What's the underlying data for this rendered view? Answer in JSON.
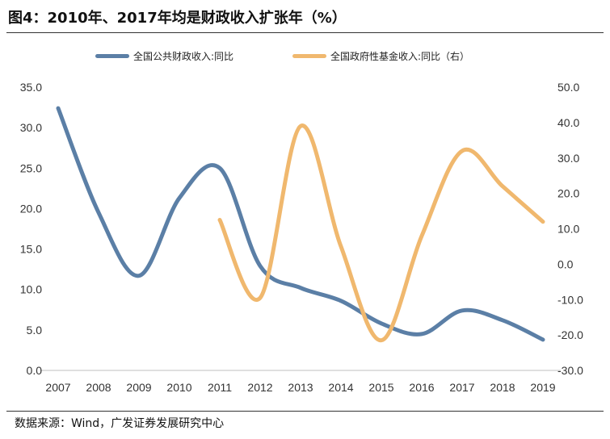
{
  "header": {
    "title": "图4：2010年、2017年均是财政收入扩张年（%）"
  },
  "footer": {
    "source": "数据来源：Wind，广发证券发展研究中心"
  },
  "colors": {
    "series1": "#5b7fa6",
    "series2": "#f0b86e",
    "axis": "#bfbfbf",
    "tick_text": "#333333"
  },
  "chart_data": {
    "type": "line",
    "title": "2010年、2017年均是财政收入扩张年（%）",
    "x": [
      "2007",
      "2008",
      "2009",
      "2010",
      "2011",
      "2012",
      "2013",
      "2014",
      "2015",
      "2016",
      "2017",
      "2018",
      "2019"
    ],
    "y_left": {
      "min": 0,
      "max": 35,
      "ticks": [
        "0.0",
        "5.0",
        "10.0",
        "15.0",
        "20.0",
        "25.0",
        "30.0",
        "35.0"
      ]
    },
    "y_right": {
      "min": -30,
      "max": 50,
      "ticks": [
        "-30.0",
        "-20.0",
        "-10.0",
        "0.0",
        "10.0",
        "20.0",
        "30.0",
        "40.0",
        "50.0"
      ]
    },
    "legend_position": "top",
    "series": [
      {
        "name": "全国公共财政收入:同比",
        "axis": "left",
        "color": "#5b7fa6",
        "values": [
          32.4,
          19.5,
          11.7,
          21.3,
          25.0,
          12.9,
          10.2,
          8.6,
          5.8,
          4.5,
          7.4,
          6.2,
          3.8
        ]
      },
      {
        "name": "全国政府性基金收入:同比（右）",
        "axis": "right",
        "color": "#f0b86e",
        "values": [
          null,
          null,
          null,
          null,
          12.5,
          -9.5,
          39.0,
          5.0,
          -21.5,
          8.0,
          32.0,
          22.0,
          12.0
        ]
      }
    ]
  }
}
